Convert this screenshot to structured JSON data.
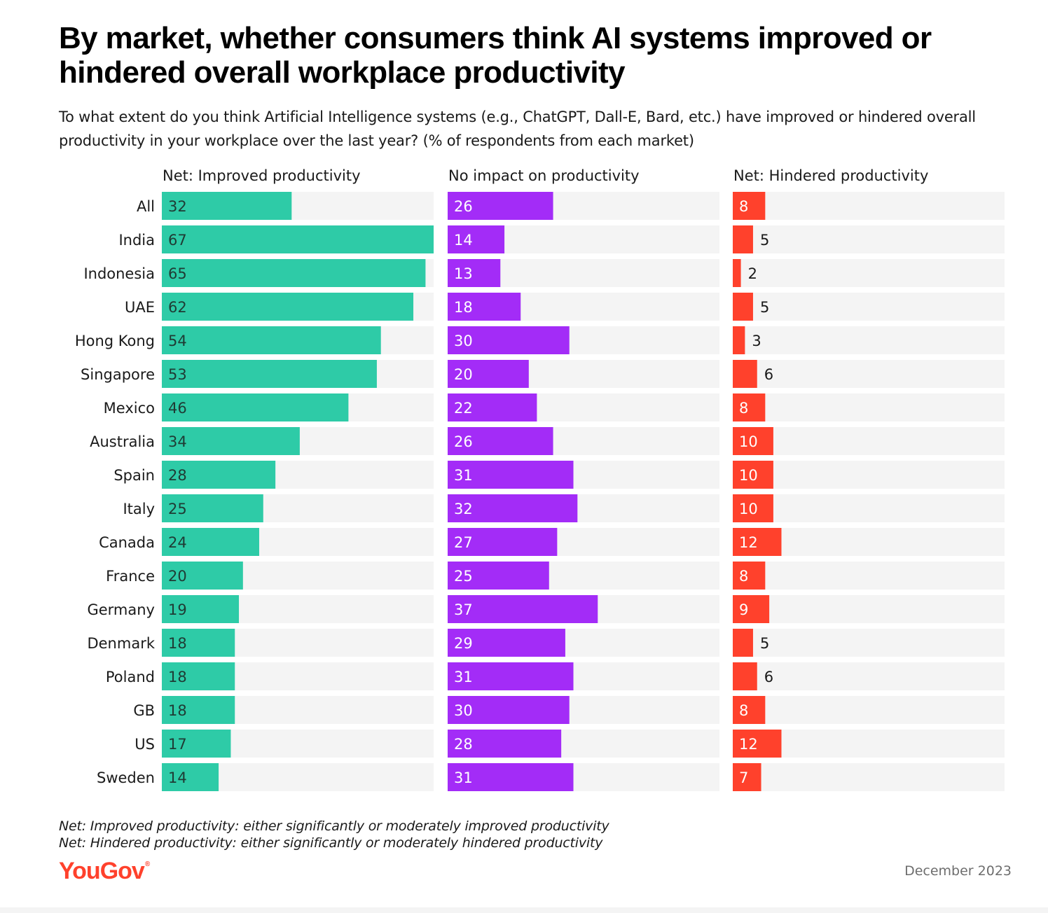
{
  "title": "By market, whether consumers think AI systems improved or hindered overall workplace productivity",
  "subtitle": "To what extent do you think Artificial Intelligence systems (e.g., ChatGPT, Dall-E, Bard, etc.) have improved or hindered overall productivity in your workplace over the last year? (% of respondents from each market)",
  "notes": [
    "Net: Improved productivity: either significantly or moderately improved productivity",
    "Net: Hindered productivity: either significantly or moderately hindered productivity"
  ],
  "brand": {
    "logo_text": "YouGov",
    "logo_color": "#ff412c"
  },
  "date": "December 2023",
  "colors": {
    "improved": "#2ecba7",
    "no_impact": "#a32cf7",
    "hindered": "#ff412c",
    "track": "#f4f4f4"
  },
  "chart_data": {
    "type": "bar",
    "orientation": "horizontal",
    "categories": [
      "All",
      "India",
      "Indonesia",
      "UAE",
      "Hong Kong",
      "Singapore",
      "Mexico",
      "Australia",
      "Spain",
      "Italy",
      "Canada",
      "France",
      "Germany",
      "Denmark",
      "Poland",
      "GB",
      "US",
      "Sweden"
    ],
    "series": [
      {
        "name": "Net: Improved productivity",
        "values": [
          32,
          67,
          65,
          62,
          54,
          53,
          46,
          34,
          28,
          25,
          24,
          20,
          19,
          18,
          18,
          18,
          17,
          14
        ]
      },
      {
        "name": "No impact on productivity",
        "values": [
          26,
          14,
          13,
          18,
          30,
          20,
          22,
          26,
          31,
          32,
          27,
          25,
          37,
          29,
          31,
          30,
          28,
          31
        ]
      },
      {
        "name": "Net: Hindered productivity",
        "values": [
          8,
          5,
          2,
          5,
          3,
          6,
          8,
          10,
          10,
          10,
          12,
          8,
          9,
          5,
          6,
          8,
          12,
          7
        ]
      }
    ],
    "xlim": [
      0,
      67
    ],
    "grid": false,
    "legend": "column headers"
  }
}
